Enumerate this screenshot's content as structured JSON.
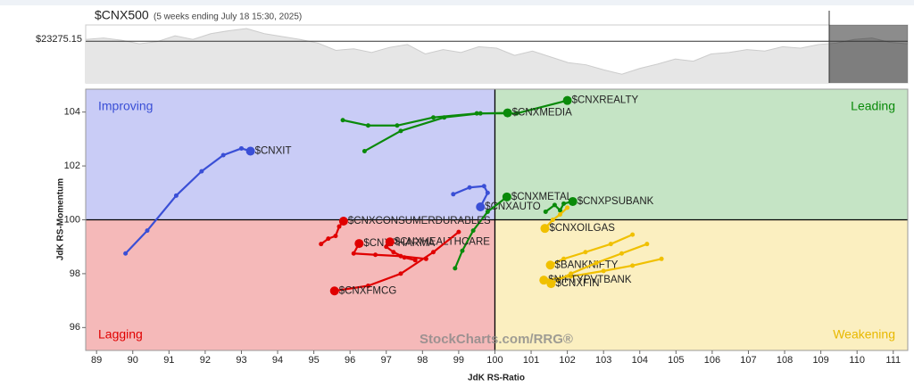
{
  "chart_data": {
    "type": "rrg",
    "title": "$CNX500",
    "subtitle": "(5 weeks ending July 18 15:30, 2025)",
    "price_label": "$23275.15",
    "price_reference": 23275.15,
    "price_ylim": [
      22700,
      23500
    ],
    "price_values": [
      23300,
      23320,
      23290,
      23240,
      23270,
      23350,
      23300,
      23380,
      23420,
      23450,
      23380,
      23340,
      23300,
      23250,
      23150,
      23170,
      23120,
      23190,
      23230,
      23100,
      23160,
      23120,
      23200,
      23180,
      23080,
      23140,
      23060,
      22980,
      22950,
      22880,
      22820,
      22900,
      22960,
      23030,
      23000,
      23100,
      23120,
      23160,
      23140,
      23200,
      23180,
      23230,
      23250,
      23300,
      23320,
      23260,
      23240
    ],
    "x_label": "JdK RS-Ratio",
    "y_label": "JdK RS-Momentum",
    "watermark": "StockCharts.com/RRG®",
    "center": [
      100,
      100
    ],
    "xlim": [
      88.7,
      111.4
    ],
    "ylim": [
      95.15,
      104.85
    ],
    "xticks": [
      89,
      90,
      91,
      92,
      93,
      94,
      95,
      96,
      97,
      98,
      99,
      100,
      101,
      102,
      103,
      104,
      105,
      106,
      107,
      108,
      109,
      110,
      111
    ],
    "yticks": [
      96,
      98,
      100,
      102,
      104
    ],
    "quadrants": [
      {
        "label": "Improving",
        "color": "#3a4fd6",
        "fill": "#c9ccf6"
      },
      {
        "label": "Leading",
        "color": "#0a8a0a",
        "fill": "#c5e4c5"
      },
      {
        "label": "Lagging",
        "color": "#e00000",
        "fill": "#f5b9b9"
      },
      {
        "label": "Weakening",
        "color": "#e8b800",
        "fill": "#fbefc0"
      }
    ],
    "series": [
      {
        "name": "$CNXIT",
        "color": "#3a4fd6",
        "x": [
          89.8,
          90.4,
          91.2,
          91.9,
          92.5,
          93.0,
          93.25
        ],
        "y": [
          98.75,
          99.6,
          100.9,
          101.8,
          102.4,
          102.65,
          102.55
        ]
      },
      {
        "name": "$CNXAUTO",
        "color": "#3a4fd6",
        "x": [
          98.85,
          99.3,
          99.7,
          99.8,
          99.6
        ],
        "y": [
          100.95,
          101.2,
          101.25,
          101.0,
          100.48
        ]
      },
      {
        "name": "$CNXREALTY",
        "color": "#0a8a0a",
        "x": [
          95.8,
          96.5,
          97.3,
          98.3,
          99.5,
          100.6,
          102.0
        ],
        "y": [
          103.7,
          103.5,
          103.5,
          103.8,
          103.95,
          103.95,
          104.43
        ]
      },
      {
        "name": "$CNXMEDIA",
        "color": "#0a8a0a",
        "x": [
          96.4,
          97.4,
          98.6,
          99.6,
          100.35
        ],
        "y": [
          102.55,
          103.3,
          103.8,
          103.95,
          103.97
        ]
      },
      {
        "name": "$CNXMETAL",
        "color": "#0a8a0a",
        "x": [
          98.9,
          99.1,
          99.4,
          99.8,
          100.33
        ],
        "y": [
          98.2,
          98.85,
          99.6,
          100.3,
          100.85
        ]
      },
      {
        "name": "$CNXPSUBANK",
        "color": "#0a8a0a",
        "x": [
          101.4,
          101.65,
          101.8,
          101.9,
          102.15
        ],
        "y": [
          100.3,
          100.55,
          100.35,
          100.6,
          100.68
        ]
      },
      {
        "name": "$CNXCONSUMERDURABLES",
        "color": "#e00000",
        "x": [
          95.2,
          95.4,
          95.6,
          95.7,
          95.82
        ],
        "y": [
          99.1,
          99.3,
          99.4,
          99.75,
          99.95
        ]
      },
      {
        "name": "$CNXPHARMA",
        "color": "#e00000",
        "x": [
          98.1,
          97.4,
          96.7,
          96.1,
          96.25
        ],
        "y": [
          98.55,
          98.65,
          98.7,
          98.75,
          99.12
        ]
      },
      {
        "name": "$CNXHEALTHCARE",
        "color": "#e00000",
        "x": [
          97.8,
          97.5,
          97.2,
          97.0,
          97.1
        ],
        "y": [
          98.5,
          98.6,
          98.8,
          99.0,
          99.18
        ]
      },
      {
        "name": "$CNXFMCG",
        "color": "#e00000",
        "x": [
          99.0,
          98.3,
          97.4,
          96.5,
          95.57
        ],
        "y": [
          99.55,
          98.8,
          98.0,
          97.55,
          97.36
        ]
      },
      {
        "name": "$CNXOILGAS",
        "color": "#f0c000",
        "x": [
          102.0,
          101.8,
          101.6,
          101.38
        ],
        "y": [
          100.45,
          100.2,
          100.0,
          99.68
        ]
      },
      {
        "name": "$BANKNIFTY",
        "color": "#f0c000",
        "x": [
          103.8,
          103.2,
          102.5,
          101.9,
          101.53
        ],
        "y": [
          99.45,
          99.1,
          98.8,
          98.55,
          98.32
        ]
      },
      {
        "name": "$NIFTYPVTBANK",
        "color": "#f0c000",
        "x": [
          104.6,
          103.8,
          103.0,
          102.1,
          101.35
        ],
        "y": [
          98.55,
          98.3,
          98.1,
          97.9,
          97.76
        ]
      },
      {
        "name": "$CNXFIN",
        "color": "#f0c000",
        "x": [
          104.2,
          103.5,
          102.8,
          102.1,
          101.55
        ],
        "y": [
          99.1,
          98.75,
          98.4,
          98.0,
          97.63
        ]
      }
    ]
  }
}
